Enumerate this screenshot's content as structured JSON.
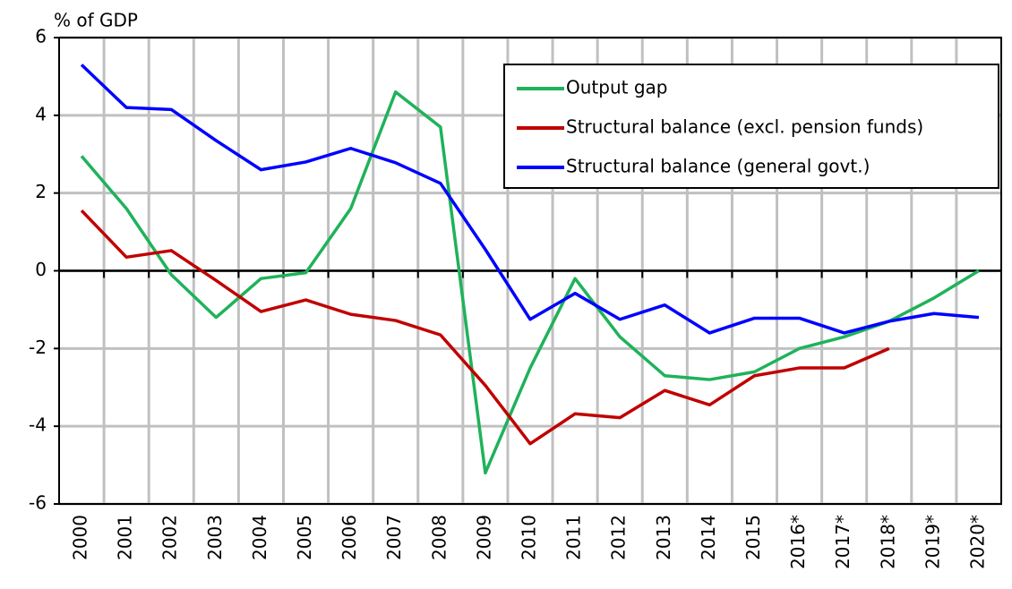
{
  "chart_data": {
    "type": "line",
    "y_label": "% of GDP",
    "categories": [
      "2000",
      "2001",
      "2002",
      "2003",
      "2004",
      "2005",
      "2006",
      "2007",
      "2008",
      "2009",
      "2010",
      "2011",
      "2012",
      "2013",
      "2014",
      "2015",
      "2016*",
      "2017*",
      "2018*",
      "2019*",
      "2020*"
    ],
    "series": [
      {
        "name": "Output gap",
        "color": "#1fb25a",
        "values": [
          2.95,
          1.6,
          -0.1,
          -1.2,
          -0.2,
          -0.05,
          1.6,
          4.6,
          3.7,
          -5.2,
          -2.5,
          -0.2,
          -1.7,
          -2.7,
          -2.8,
          -2.6,
          -2.0,
          -1.7,
          -1.3,
          -0.7,
          0.0
        ]
      },
      {
        "name": "Structural balance (excl. pension funds)",
        "color": "#c00000",
        "values": [
          1.55,
          0.35,
          0.52,
          -0.25,
          -1.05,
          -0.75,
          -1.12,
          -1.28,
          -1.65,
          -2.95,
          -4.45,
          -3.68,
          -3.78,
          -3.08,
          -3.45,
          -2.7,
          -2.5,
          -2.5,
          -2.0,
          null,
          null
        ]
      },
      {
        "name": "Structural balance (general govt.)",
        "color": "#0000ff",
        "values": [
          5.3,
          4.2,
          4.15,
          3.35,
          2.6,
          2.8,
          3.15,
          2.78,
          2.25,
          0.55,
          -1.25,
          -0.58,
          -1.25,
          -0.88,
          -1.6,
          -1.22,
          -1.22,
          -1.6,
          -1.3,
          -1.1,
          -1.2
        ]
      }
    ],
    "ylim": [
      -6,
      6
    ],
    "yticks": [
      -6,
      -4,
      -2,
      0,
      2,
      4,
      6
    ],
    "grid": true,
    "legend": "upper right"
  }
}
